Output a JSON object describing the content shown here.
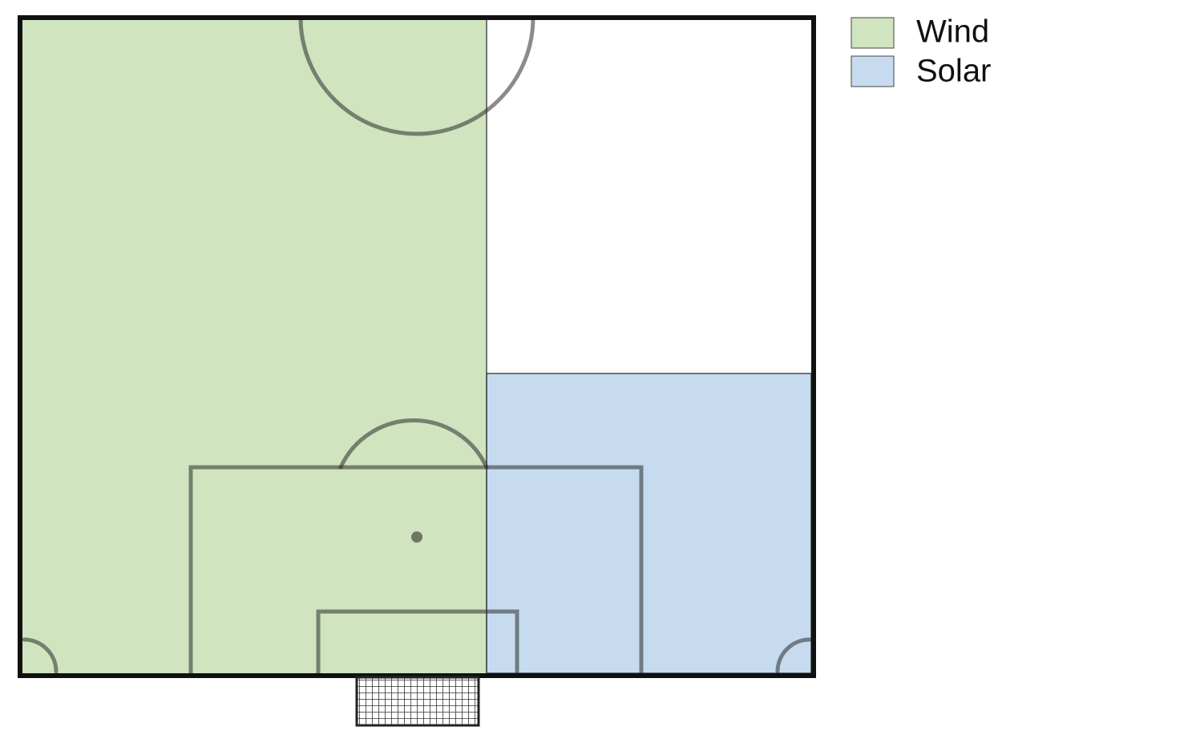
{
  "legend": [
    {
      "label": "Wind",
      "color": "#cfe4bf"
    },
    {
      "label": "Solar",
      "color": "#c6dbf0"
    }
  ]
}
